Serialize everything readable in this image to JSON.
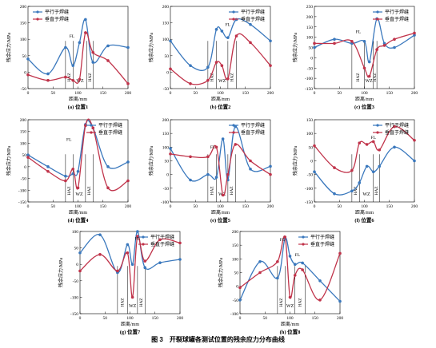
{
  "figure_caption": "图 3　开裂球罐各测试位置的残余应力分布曲线",
  "colors": {
    "parallel": "#3a78bd",
    "perpendicular": "#c0334a"
  },
  "chart_data": [
    {
      "type": "line",
      "caption": "(a) 位置1",
      "xlabel": "距离/mm",
      "ylabel": "残余应力/MPa",
      "xlim": [
        0,
        200
      ],
      "ylim": [
        -50,
        200
      ],
      "xticks": [
        0,
        50,
        100,
        150,
        200
      ],
      "yticks": [
        -50,
        0,
        50,
        100,
        150,
        200
      ],
      "legend": "top-left",
      "zones": [
        {
          "label": "HAZ",
          "x0": 75,
          "x1": 90
        },
        {
          "label": "WZ",
          "x0": 90,
          "x1": 118
        },
        {
          "label": "HAZ",
          "x0": 118,
          "x1": 130
        }
      ],
      "annotations": [
        {
          "text": "FL",
          "x": 88,
          "y": 105
        }
      ],
      "series": [
        {
          "name": "平行于焊缝",
          "x": [
            0,
            40,
            75,
            90,
            103,
            115,
            130,
            160,
            200
          ],
          "y": [
            40,
            -5,
            75,
            20,
            90,
            160,
            30,
            80,
            75
          ]
        },
        {
          "name": "垂直于焊缝",
          "x": [
            0,
            40,
            75,
            90,
            103,
            115,
            130,
            160,
            200
          ],
          "y": [
            -8,
            -25,
            -15,
            -25,
            -22,
            120,
            60,
            35,
            -35
          ]
        }
      ]
    },
    {
      "type": "line",
      "caption": "(b) 位置2",
      "xlabel": "距离/mm",
      "ylabel": "残余应力/MPa",
      "xlim": [
        0,
        200
      ],
      "ylim": [
        -50,
        200
      ],
      "xticks": [
        0,
        50,
        100,
        150,
        200
      ],
      "yticks": [
        -50,
        0,
        50,
        100,
        150,
        200
      ],
      "legend": "top-right",
      "zones": [
        {
          "label": "HAZ",
          "x0": 75,
          "x1": 92
        },
        {
          "label": "WZ",
          "x0": 92,
          "x1": 115
        },
        {
          "label": "HAZ",
          "x0": 115,
          "x1": 132
        }
      ],
      "annotations": [
        {
          "text": "FL",
          "x": 115,
          "y": 140
        }
      ],
      "series": [
        {
          "name": "平行于焊缝",
          "x": [
            0,
            40,
            75,
            92,
            103,
            115,
            132,
            160,
            200
          ],
          "y": [
            95,
            20,
            15,
            130,
            125,
            105,
            160,
            145,
            95
          ]
        },
        {
          "name": "垂直于焊缝",
          "x": [
            0,
            40,
            75,
            92,
            103,
            115,
            132,
            160,
            200
          ],
          "y": [
            10,
            -35,
            -25,
            30,
            20,
            -20,
            110,
            90,
            20
          ]
        }
      ]
    },
    {
      "type": "line",
      "caption": "(c) 位置3",
      "xlabel": "距离/mm",
      "ylabel": "残余应力/MPa",
      "xlim": [
        0,
        200
      ],
      "ylim": [
        -150,
        250
      ],
      "xticks": [
        0,
        50,
        100,
        150,
        200
      ],
      "yticks": [
        -150,
        -100,
        -50,
        0,
        50,
        100,
        150,
        200,
        250
      ],
      "legend": "top-right",
      "zones": [
        {
          "label": "HAZ",
          "x0": 75,
          "x1": 100
        },
        {
          "label": "WZ",
          "x0": 100,
          "x1": 118
        },
        {
          "label": "HAZ",
          "x0": 118,
          "x1": 125
        }
      ],
      "annotations": [
        {
          "text": "FL",
          "x": 88,
          "y": 120
        }
      ],
      "series": [
        {
          "name": "平行于焊缝",
          "x": [
            0,
            40,
            75,
            100,
            110,
            125,
            140,
            160,
            200
          ],
          "y": [
            50,
            90,
            70,
            80,
            -20,
            190,
            70,
            50,
            110
          ]
        },
        {
          "name": "垂直于焊缝",
          "x": [
            0,
            40,
            75,
            100,
            110,
            125,
            140,
            160,
            200
          ],
          "y": [
            70,
            70,
            80,
            -50,
            -90,
            40,
            60,
            90,
            120
          ]
        }
      ]
    },
    {
      "type": "line",
      "caption": "(d) 位置4",
      "xlabel": "距离/mm",
      "ylabel": "残余应力/MPa",
      "xlim": [
        0,
        200
      ],
      "ylim": [
        -150,
        200
      ],
      "xticks": [
        0,
        50,
        100,
        150,
        200
      ],
      "yticks": [
        -150,
        -100,
        -50,
        0,
        50,
        100,
        150,
        200
      ],
      "legend": "top-right",
      "zones": [
        {
          "label": "HAZ",
          "x0": 75,
          "x1": 90
        },
        {
          "label": "WZ",
          "x0": 90,
          "x1": 115
        },
        {
          "label": "HAZ",
          "x0": 115,
          "x1": 130
        }
      ],
      "annotations": [
        {
          "text": "FL",
          "x": 82,
          "y": 110
        }
      ],
      "series": [
        {
          "name": "平行于焊缝",
          "x": [
            0,
            40,
            75,
            90,
            100,
            115,
            130,
            160,
            200
          ],
          "y": [
            50,
            0,
            -40,
            -30,
            -20,
            180,
            165,
            0,
            20
          ]
        },
        {
          "name": "垂直于焊缝",
          "x": [
            0,
            40,
            75,
            90,
            100,
            115,
            130,
            160,
            200
          ],
          "y": [
            40,
            -20,
            -60,
            -10,
            -90,
            175,
            165,
            -90,
            -60
          ]
        }
      ]
    },
    {
      "type": "line",
      "caption": "(e) 位置5",
      "xlabel": "距离/mm",
      "ylabel": "残余应力/MPa",
      "xlim": [
        0,
        200
      ],
      "ylim": [
        -100,
        200
      ],
      "xticks": [
        0,
        50,
        100,
        150,
        200
      ],
      "yticks": [
        -100,
        -50,
        0,
        50,
        100,
        150,
        200
      ],
      "legend": "top-right",
      "zones": [
        {
          "label": "HAZ",
          "x0": 75,
          "x1": 92
        },
        {
          "label": "WZ",
          "x0": 92,
          "x1": 115
        },
        {
          "label": "HAZ",
          "x0": 115,
          "x1": 130
        }
      ],
      "annotations": [
        {
          "text": "FL",
          "x": 85,
          "y": 95
        }
      ],
      "series": [
        {
          "name": "平行于焊缝",
          "x": [
            0,
            40,
            75,
            92,
            105,
            115,
            130,
            160,
            200
          ],
          "y": [
            95,
            -20,
            0,
            -10,
            130,
            -20,
            175,
            20,
            30
          ]
        },
        {
          "name": "垂直于焊缝",
          "x": [
            0,
            40,
            75,
            92,
            105,
            115,
            130,
            160,
            200
          ],
          "y": [
            75,
            65,
            65,
            100,
            -75,
            0,
            110,
            50,
            0
          ]
        }
      ]
    },
    {
      "type": "line",
      "caption": "(f) 位置6",
      "xlabel": "距离/mm",
      "ylabel": "残余应力/MPa",
      "xlim": [
        0,
        200
      ],
      "ylim": [
        -150,
        150
      ],
      "xticks": [
        0,
        50,
        100,
        150,
        200
      ],
      "yticks": [
        -150,
        -100,
        -50,
        0,
        50,
        100,
        150
      ],
      "legend": "top-right",
      "zones": [
        {
          "label": "HAZ",
          "x0": 75,
          "x1": 90
        },
        {
          "label": "WZ",
          "x0": 90,
          "x1": 118
        },
        {
          "label": "HAZ",
          "x0": 118,
          "x1": 130
        }
      ],
      "annotations": [
        {
          "text": "FL",
          "x": 118,
          "y": 80
        }
      ],
      "series": [
        {
          "name": "平行于焊缝",
          "x": [
            0,
            40,
            75,
            90,
            105,
            118,
            130,
            160,
            200
          ],
          "y": [
            -40,
            -120,
            -110,
            -80,
            -20,
            -40,
            -20,
            50,
            0
          ]
        },
        {
          "name": "垂直于焊缝",
          "x": [
            0,
            40,
            75,
            90,
            105,
            118,
            130,
            160,
            200
          ],
          "y": [
            55,
            -25,
            -35,
            65,
            60,
            70,
            40,
            125,
            75
          ]
        }
      ]
    },
    {
      "type": "line",
      "caption": "(g) 位置7",
      "xlabel": "距离/mm",
      "ylabel": "残余应力/MPa",
      "xlim": [
        0,
        200
      ],
      "ylim": [
        -150,
        100
      ],
      "xticks": [
        0,
        50,
        100,
        150,
        200
      ],
      "yticks": [
        -150,
        -100,
        -50,
        0,
        50,
        100
      ],
      "legend": "top-right",
      "zones": [
        {
          "label": "HAZ",
          "x0": 75,
          "x1": 95
        },
        {
          "label": "WZ",
          "x0": 95,
          "x1": 115
        },
        {
          "label": "HAZ",
          "x0": 115,
          "x1": 130
        }
      ],
      "annotations": [
        {
          "text": "FL",
          "x": 115,
          "y": 75
        }
      ],
      "series": [
        {
          "name": "平行于焊缝",
          "x": [
            0,
            40,
            75,
            95,
            105,
            115,
            130,
            160,
            200
          ],
          "y": [
            35,
            90,
            -25,
            60,
            0,
            100,
            -10,
            5,
            15
          ]
        },
        {
          "name": "垂直于焊缝",
          "x": [
            0,
            40,
            75,
            95,
            105,
            115,
            130,
            160,
            200
          ],
          "y": [
            -20,
            30,
            -20,
            35,
            -100,
            85,
            10,
            75,
            65
          ]
        }
      ]
    },
    {
      "type": "line",
      "caption": "(h) 位置8",
      "xlabel": "距离/mm",
      "ylabel": "残余应力/MPa",
      "xlim": [
        0,
        200
      ],
      "ylim": [
        -100,
        200
      ],
      "xticks": [
        0,
        50,
        100,
        150,
        200
      ],
      "yticks": [
        -100,
        -50,
        0,
        50,
        100,
        150,
        200
      ],
      "legend": "top-right",
      "zones": [
        {
          "label": "HAZ",
          "x0": 75,
          "x1": 90
        },
        {
          "label": "WZ",
          "x0": 90,
          "x1": 110
        },
        {
          "label": "HAZ",
          "x0": 110,
          "x1": 130
        }
      ],
      "annotations": [
        {
          "text": "FL",
          "x": 85,
          "y": 165
        },
        {
          "text": "FL",
          "x": 115,
          "y": 110
        }
      ],
      "series": [
        {
          "name": "平行于焊缝",
          "x": [
            0,
            40,
            75,
            90,
            100,
            110,
            125,
            160,
            200
          ],
          "y": [
            -50,
            90,
            30,
            175,
            110,
            80,
            85,
            20,
            -55
          ]
        },
        {
          "name": "垂直于焊缝",
          "x": [
            0,
            40,
            75,
            90,
            100,
            110,
            125,
            160,
            200
          ],
          "y": [
            -5,
            50,
            90,
            180,
            -40,
            40,
            60,
            -50,
            120
          ]
        }
      ]
    }
  ]
}
